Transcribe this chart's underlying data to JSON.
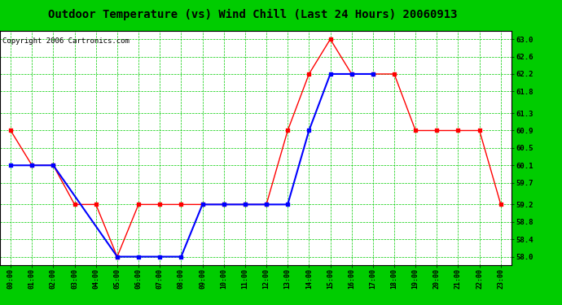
{
  "title": "Outdoor Temperature (vs) Wind Chill (Last 24 Hours) 20060913",
  "copyright": "Copyright 2006 Cartronics.com",
  "hours": [
    "00:00",
    "01:00",
    "02:00",
    "03:00",
    "04:00",
    "05:00",
    "06:00",
    "07:00",
    "08:00",
    "09:00",
    "10:00",
    "11:00",
    "12:00",
    "13:00",
    "14:00",
    "15:00",
    "16:00",
    "17:00",
    "18:00",
    "19:00",
    "20:00",
    "21:00",
    "22:00",
    "23:00"
  ],
  "temp_red": [
    60.9,
    60.1,
    60.1,
    59.2,
    59.2,
    58.0,
    59.2,
    59.2,
    59.2,
    59.2,
    59.2,
    59.2,
    59.2,
    60.9,
    62.2,
    63.0,
    62.2,
    62.2,
    62.2,
    60.9,
    60.9,
    60.9,
    60.9,
    59.2
  ],
  "wind_blue": [
    60.1,
    60.1,
    60.1,
    null,
    null,
    58.0,
    58.0,
    58.0,
    58.0,
    59.2,
    59.2,
    59.2,
    59.2,
    59.2,
    60.9,
    62.2,
    62.2,
    62.2,
    null,
    null,
    null,
    null,
    null,
    null
  ],
  "ylim": [
    57.8,
    63.2
  ],
  "yticks": [
    58.0,
    58.4,
    58.8,
    59.2,
    59.7,
    60.1,
    60.5,
    60.9,
    61.3,
    61.8,
    62.2,
    62.6,
    63.0
  ],
  "bg_color": "#00cc00",
  "plot_bg": "#ffffff",
  "grid_color": "#00cc00",
  "red_color": "#ff0000",
  "blue_color": "#0000ff",
  "title_color": "#000000",
  "title_fontsize": 10,
  "copyright_fontsize": 6.5,
  "figwidth": 6.9,
  "figheight": 3.75,
  "dpi": 100
}
